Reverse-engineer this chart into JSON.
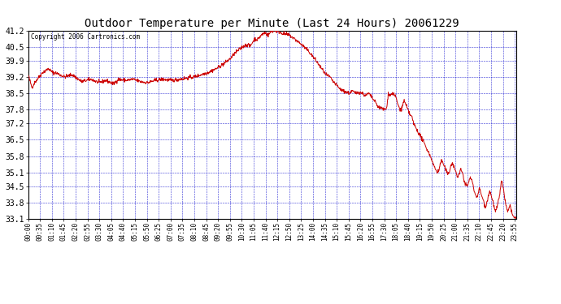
{
  "title": "Outdoor Temperature per Minute (Last 24 Hours) 20061229",
  "copyright_text": "Copyright 2006 Cartronics.com",
  "yticks": [
    33.1,
    33.8,
    34.5,
    35.1,
    35.8,
    36.5,
    37.2,
    37.8,
    38.5,
    39.2,
    39.9,
    40.5,
    41.2
  ],
  "ymin": 33.1,
  "ymax": 41.2,
  "line_color": "#cc0000",
  "background_color": "#ffffff",
  "grid_color": "#0000cc",
  "title_color": "#000000",
  "tick_label_color": "#000000",
  "xtick_interval_minutes": 35,
  "total_minutes": 1440,
  "noise_std": 0.04,
  "keypoints": [
    [
      0.0,
      39.3
    ],
    [
      0.008,
      38.75
    ],
    [
      0.015,
      39.0
    ],
    [
      0.03,
      39.4
    ],
    [
      0.042,
      39.55
    ],
    [
      0.05,
      39.4
    ],
    [
      0.06,
      39.35
    ],
    [
      0.075,
      39.2
    ],
    [
      0.09,
      39.3
    ],
    [
      0.1,
      39.15
    ],
    [
      0.11,
      39.0
    ],
    [
      0.12,
      39.05
    ],
    [
      0.13,
      39.1
    ],
    [
      0.145,
      38.95
    ],
    [
      0.16,
      39.05
    ],
    [
      0.175,
      38.9
    ],
    [
      0.185,
      39.1
    ],
    [
      0.2,
      39.05
    ],
    [
      0.215,
      39.1
    ],
    [
      0.23,
      39.0
    ],
    [
      0.245,
      38.95
    ],
    [
      0.26,
      39.05
    ],
    [
      0.275,
      39.1
    ],
    [
      0.295,
      39.05
    ],
    [
      0.31,
      39.1
    ],
    [
      0.325,
      39.15
    ],
    [
      0.34,
      39.2
    ],
    [
      0.355,
      39.3
    ],
    [
      0.37,
      39.4
    ],
    [
      0.385,
      39.55
    ],
    [
      0.4,
      39.75
    ],
    [
      0.415,
      40.0
    ],
    [
      0.425,
      40.25
    ],
    [
      0.44,
      40.5
    ],
    [
      0.45,
      40.6
    ],
    [
      0.455,
      40.5
    ],
    [
      0.46,
      40.7
    ],
    [
      0.465,
      40.85
    ],
    [
      0.47,
      40.8
    ],
    [
      0.478,
      41.0
    ],
    [
      0.485,
      41.1
    ],
    [
      0.492,
      41.0
    ],
    [
      0.498,
      41.15
    ],
    [
      0.505,
      41.2
    ],
    [
      0.512,
      41.15
    ],
    [
      0.518,
      41.1
    ],
    [
      0.525,
      41.05
    ],
    [
      0.535,
      41.0
    ],
    [
      0.545,
      40.85
    ],
    [
      0.56,
      40.6
    ],
    [
      0.575,
      40.3
    ],
    [
      0.59,
      39.9
    ],
    [
      0.6,
      39.6
    ],
    [
      0.61,
      39.3
    ],
    [
      0.618,
      39.2
    ],
    [
      0.625,
      39.0
    ],
    [
      0.632,
      38.85
    ],
    [
      0.638,
      38.7
    ],
    [
      0.645,
      38.6
    ],
    [
      0.652,
      38.55
    ],
    [
      0.658,
      38.5
    ],
    [
      0.665,
      38.6
    ],
    [
      0.67,
      38.5
    ],
    [
      0.678,
      38.55
    ],
    [
      0.685,
      38.5
    ],
    [
      0.692,
      38.4
    ],
    [
      0.698,
      38.5
    ],
    [
      0.705,
      38.3
    ],
    [
      0.712,
      38.1
    ],
    [
      0.718,
      37.9
    ],
    [
      0.725,
      37.85
    ],
    [
      0.73,
      37.8
    ],
    [
      0.735,
      37.85
    ],
    [
      0.738,
      38.5
    ],
    [
      0.742,
      38.4
    ],
    [
      0.746,
      38.5
    ],
    [
      0.75,
      38.45
    ],
    [
      0.754,
      38.3
    ],
    [
      0.758,
      38.0
    ],
    [
      0.762,
      37.8
    ],
    [
      0.766,
      37.85
    ],
    [
      0.77,
      38.2
    ],
    [
      0.774,
      38.0
    ],
    [
      0.778,
      37.8
    ],
    [
      0.782,
      37.6
    ],
    [
      0.786,
      37.5
    ],
    [
      0.79,
      37.2
    ],
    [
      0.795,
      37.0
    ],
    [
      0.8,
      36.8
    ],
    [
      0.808,
      36.5
    ],
    [
      0.815,
      36.2
    ],
    [
      0.822,
      35.9
    ],
    [
      0.828,
      35.6
    ],
    [
      0.833,
      35.3
    ],
    [
      0.838,
      35.1
    ],
    [
      0.842,
      35.2
    ],
    [
      0.845,
      35.5
    ],
    [
      0.848,
      35.6
    ],
    [
      0.852,
      35.4
    ],
    [
      0.856,
      35.2
    ],
    [
      0.86,
      35.0
    ],
    [
      0.863,
      35.1
    ],
    [
      0.866,
      35.4
    ],
    [
      0.87,
      35.5
    ],
    [
      0.873,
      35.3
    ],
    [
      0.877,
      35.1
    ],
    [
      0.88,
      34.9
    ],
    [
      0.883,
      35.0
    ],
    [
      0.886,
      35.2
    ],
    [
      0.89,
      35.1
    ],
    [
      0.893,
      34.8
    ],
    [
      0.896,
      34.6
    ],
    [
      0.9,
      34.5
    ],
    [
      0.903,
      34.7
    ],
    [
      0.906,
      34.9
    ],
    [
      0.91,
      34.7
    ],
    [
      0.913,
      34.4
    ],
    [
      0.916,
      34.2
    ],
    [
      0.919,
      34.0
    ],
    [
      0.922,
      34.2
    ],
    [
      0.925,
      34.4
    ],
    [
      0.928,
      34.2
    ],
    [
      0.931,
      34.0
    ],
    [
      0.934,
      33.8
    ],
    [
      0.937,
      33.6
    ],
    [
      0.94,
      33.8
    ],
    [
      0.943,
      34.1
    ],
    [
      0.946,
      34.3
    ],
    [
      0.949,
      34.1
    ],
    [
      0.952,
      33.9
    ],
    [
      0.955,
      33.6
    ],
    [
      0.958,
      33.4
    ],
    [
      0.961,
      33.6
    ],
    [
      0.964,
      33.9
    ],
    [
      0.967,
      34.2
    ],
    [
      0.97,
      34.8
    ],
    [
      0.973,
      34.5
    ],
    [
      0.976,
      34.1
    ],
    [
      0.979,
      33.7
    ],
    [
      0.982,
      33.4
    ],
    [
      0.985,
      33.5
    ],
    [
      0.988,
      33.7
    ],
    [
      0.991,
      33.4
    ],
    [
      0.994,
      33.2
    ],
    [
      0.997,
      33.15
    ],
    [
      1.0,
      33.1
    ]
  ]
}
